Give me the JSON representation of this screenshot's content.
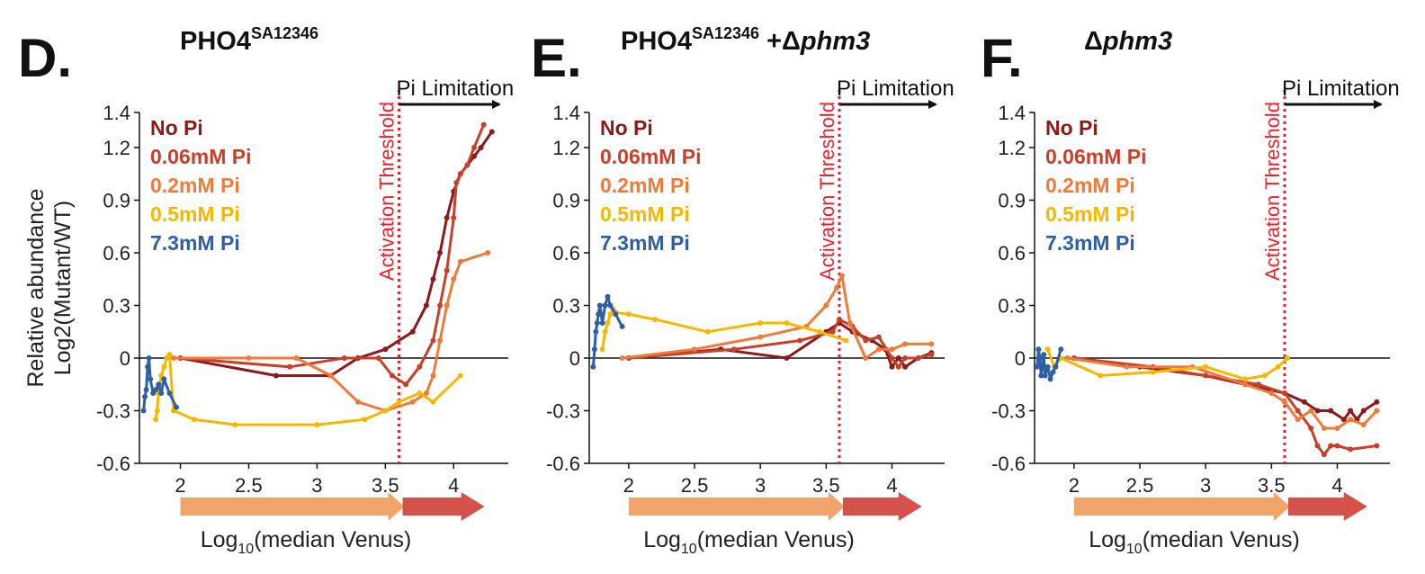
{
  "figure": {
    "ylabel_line1": "Relative abundance",
    "ylabel_line2": "Log2(Mutant/WT)",
    "xlabel_prefix": "Log",
    "xlabel_sub": "10",
    "xlabel_suffix": "(median Venus)",
    "threshold_label": "Activation Threshold",
    "limitation_label": "Pi Limitation",
    "legend": [
      {
        "label": "No Pi",
        "color": "#8b1a1a"
      },
      {
        "label": "0.06mM Pi",
        "color": "#c8402a"
      },
      {
        "label": "0.2mM Pi",
        "color": "#f07a3a"
      },
      {
        "label": "0.5mM Pi",
        "color": "#f5b800"
      },
      {
        "label": "7.3mM Pi",
        "color": "#2e5fa5"
      }
    ],
    "arrow_colors": {
      "low": "#f2a56a",
      "high": "#d4524a"
    },
    "threshold_color": "#e8222e"
  },
  "chart_data": [
    {
      "type": "line",
      "panel": "D.",
      "title_main": "PHO4",
      "title_sup": "SA12346",
      "title_suffix": "",
      "title_italic": "",
      "xlim": [
        1.7,
        4.4
      ],
      "ylim": [
        -0.6,
        1.4
      ],
      "xticks": [
        "2",
        "2.5",
        "3",
        "3.5",
        "4"
      ],
      "yticks": [
        "1.4",
        "1.2",
        "0.9",
        "0.6",
        "0.3",
        "0",
        "-0.3",
        "-0.6"
      ],
      "threshold_x": 3.6,
      "series": [
        {
          "name": "No Pi",
          "x": [
            2.0,
            2.7,
            3.1,
            3.3,
            3.5,
            3.7,
            3.8,
            3.85,
            3.9,
            3.95,
            4.0,
            4.05,
            4.1,
            4.15,
            4.2,
            4.28
          ],
          "y": [
            0.0,
            -0.1,
            -0.1,
            0.0,
            0.05,
            0.15,
            0.3,
            0.45,
            0.6,
            0.8,
            0.95,
            1.05,
            1.1,
            1.15,
            1.2,
            1.29
          ]
        },
        {
          "name": "0.06mM Pi",
          "x": [
            2.0,
            2.8,
            3.2,
            3.45,
            3.55,
            3.65,
            3.75,
            3.85,
            3.9,
            3.95,
            4.0,
            4.02,
            4.05,
            4.1,
            4.15,
            4.22
          ],
          "y": [
            0.0,
            -0.05,
            0.0,
            0.0,
            -0.1,
            -0.15,
            -0.05,
            0.1,
            0.3,
            0.5,
            0.8,
            1.0,
            1.05,
            1.1,
            1.2,
            1.33
          ]
        },
        {
          "name": "0.2mM Pi",
          "x": [
            1.95,
            2.5,
            2.85,
            3.1,
            3.3,
            3.5,
            3.7,
            3.8,
            3.85,
            3.9,
            3.95,
            4.0,
            4.05,
            4.25
          ],
          "y": [
            0.0,
            0.0,
            0.0,
            -0.1,
            -0.25,
            -0.3,
            -0.25,
            -0.2,
            -0.1,
            0.1,
            0.3,
            0.45,
            0.55,
            0.6
          ]
        },
        {
          "name": "0.5mM Pi",
          "x": [
            1.82,
            1.83,
            1.84,
            1.86,
            1.88,
            1.9,
            1.92,
            1.95,
            2.1,
            2.4,
            3.0,
            3.35,
            3.5,
            3.6,
            3.75,
            3.85,
            4.05
          ],
          "y": [
            -0.35,
            -0.3,
            -0.2,
            -0.1,
            -0.05,
            0.0,
            0.02,
            -0.3,
            -0.35,
            -0.38,
            -0.38,
            -0.35,
            -0.3,
            -0.25,
            -0.2,
            -0.25,
            -0.1
          ]
        },
        {
          "name": "7.3mM Pi",
          "x": [
            1.73,
            1.74,
            1.75,
            1.76,
            1.77,
            1.78,
            1.8,
            1.82,
            1.84,
            1.86,
            1.88,
            1.92,
            1.97
          ],
          "y": [
            -0.3,
            -0.22,
            -0.18,
            -0.05,
            0.0,
            -0.12,
            -0.2,
            -0.18,
            -0.15,
            -0.2,
            -0.12,
            -0.2,
            -0.28
          ]
        }
      ]
    },
    {
      "type": "line",
      "panel": "E.",
      "title_main": "PHO4",
      "title_sup": "SA12346",
      "title_suffix": " +Δ",
      "title_italic": "phm3",
      "xlim": [
        1.7,
        4.4
      ],
      "ylim": [
        -0.6,
        1.4
      ],
      "xticks": [
        "2",
        "2.5",
        "3",
        "3.5",
        "4"
      ],
      "yticks": [
        "1.4",
        "1.2",
        "0.9",
        "0.6",
        "0.3",
        "0",
        "-0.3",
        "-0.6"
      ],
      "threshold_x": 3.6,
      "series": [
        {
          "name": "No Pi",
          "x": [
            2.0,
            2.7,
            3.2,
            3.5,
            3.6,
            3.7,
            3.85,
            3.95,
            4.0,
            4.05,
            4.1,
            4.2,
            4.3
          ],
          "y": [
            0.0,
            0.05,
            0.0,
            0.15,
            0.2,
            0.15,
            0.1,
            0.05,
            -0.05,
            0.0,
            -0.05,
            0.0,
            0.03
          ]
        },
        {
          "name": "0.06mM Pi",
          "x": [
            2.0,
            2.8,
            3.3,
            3.55,
            3.6,
            3.7,
            3.8,
            3.9,
            4.0,
            4.05,
            4.1,
            4.2,
            4.3
          ],
          "y": [
            0.0,
            0.05,
            0.1,
            0.15,
            0.22,
            0.18,
            0.1,
            0.12,
            0.0,
            -0.05,
            0.0,
            0.0,
            0.02
          ]
        },
        {
          "name": "0.2mM Pi",
          "x": [
            1.95,
            2.5,
            3.0,
            3.35,
            3.5,
            3.58,
            3.62,
            3.68,
            3.8,
            3.9,
            4.0,
            4.1,
            4.3
          ],
          "y": [
            0.0,
            0.05,
            0.12,
            0.18,
            0.3,
            0.4,
            0.47,
            0.2,
            0.0,
            0.05,
            0.05,
            0.08,
            0.08
          ]
        },
        {
          "name": "0.5mM Pi",
          "x": [
            1.8,
            1.82,
            1.84,
            1.86,
            1.88,
            1.9,
            2.0,
            2.2,
            2.6,
            3.0,
            3.2,
            3.45,
            3.65
          ],
          "y": [
            0.05,
            0.15,
            0.2,
            0.25,
            0.28,
            0.26,
            0.25,
            0.22,
            0.15,
            0.2,
            0.2,
            0.15,
            0.1
          ]
        },
        {
          "name": "7.3mM Pi",
          "x": [
            1.73,
            1.74,
            1.75,
            1.76,
            1.77,
            1.78,
            1.79,
            1.8,
            1.82,
            1.84,
            1.86,
            1.9,
            1.95
          ],
          "y": [
            -0.05,
            0.05,
            0.15,
            0.2,
            0.25,
            0.3,
            0.25,
            0.2,
            0.3,
            0.35,
            0.3,
            0.25,
            0.18
          ]
        }
      ]
    },
    {
      "type": "line",
      "panel": "F.",
      "title_main": "",
      "title_sup": "",
      "title_suffix": "Δ",
      "title_italic": "phm3",
      "xlim": [
        1.7,
        4.4
      ],
      "ylim": [
        -0.6,
        1.4
      ],
      "xticks": [
        "2",
        "2.5",
        "3",
        "3.5",
        "4"
      ],
      "yticks": [
        "1.4",
        "1.2",
        "0.9",
        "0.6",
        "0.3",
        "0",
        "-0.3",
        "-0.6"
      ],
      "threshold_x": 3.6,
      "series": [
        {
          "name": "No Pi",
          "x": [
            2.0,
            2.5,
            3.0,
            3.3,
            3.6,
            3.75,
            3.85,
            3.95,
            4.05,
            4.1,
            4.15,
            4.2,
            4.3
          ],
          "y": [
            0.0,
            -0.05,
            -0.1,
            -0.15,
            -0.2,
            -0.25,
            -0.3,
            -0.3,
            -0.35,
            -0.3,
            -0.35,
            -0.3,
            -0.25
          ]
        },
        {
          "name": "0.06mM Pi",
          "x": [
            2.0,
            2.6,
            3.0,
            3.4,
            3.6,
            3.7,
            3.8,
            3.85,
            3.9,
            3.95,
            4.0,
            4.1,
            4.3
          ],
          "y": [
            0.0,
            -0.05,
            -0.1,
            -0.15,
            -0.2,
            -0.3,
            -0.4,
            -0.5,
            -0.55,
            -0.5,
            -0.5,
            -0.52,
            -0.5
          ]
        },
        {
          "name": "0.2mM Pi",
          "x": [
            1.95,
            2.4,
            2.9,
            3.3,
            3.5,
            3.6,
            3.7,
            3.8,
            3.9,
            4.0,
            4.1,
            4.2,
            4.3
          ],
          "y": [
            0.0,
            -0.05,
            -0.05,
            -0.15,
            -0.2,
            -0.25,
            -0.35,
            -0.3,
            -0.4,
            -0.4,
            -0.35,
            -0.38,
            -0.3
          ]
        },
        {
          "name": "0.5mM Pi",
          "x": [
            1.8,
            1.85,
            1.9,
            2.2,
            2.6,
            3.0,
            3.3,
            3.45,
            3.55,
            3.62
          ],
          "y": [
            0.05,
            -0.05,
            0.0,
            -0.1,
            -0.08,
            -0.05,
            -0.12,
            -0.1,
            -0.05,
            0.0
          ]
        },
        {
          "name": "7.3mM Pi",
          "x": [
            1.72,
            1.73,
            1.74,
            1.75,
            1.76,
            1.77,
            1.78,
            1.8,
            1.82,
            1.84,
            1.86,
            1.9
          ],
          "y": [
            -0.05,
            0.05,
            0.0,
            -0.1,
            -0.05,
            0.02,
            -0.1,
            -0.05,
            -0.12,
            -0.08,
            -0.05,
            0.05
          ]
        }
      ]
    }
  ]
}
